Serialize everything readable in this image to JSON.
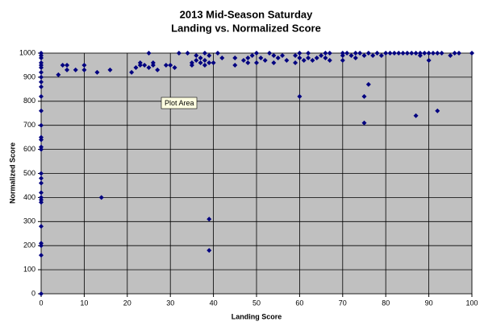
{
  "chart_data": {
    "type": "scatter",
    "title": "2013 Mid-Season Saturday",
    "subtitle": "Landing vs. Normalized Score",
    "x_label": "Landing Score",
    "y_label": "Normalized Score",
    "tooltip": "Plot Area",
    "grid": true,
    "plot_background": "#c0c0c0",
    "series": [
      {
        "name": "Normalized Score",
        "color": "#000080",
        "x": [
          0,
          0,
          0,
          0,
          0,
          0,
          0,
          0,
          0,
          0,
          0,
          0,
          0,
          0,
          0,
          0,
          0,
          0,
          0,
          0,
          0,
          0,
          0,
          0,
          0,
          0,
          0,
          0,
          0,
          4,
          5,
          6,
          6,
          8,
          10,
          10,
          13,
          14,
          16,
          21,
          22,
          23,
          23,
          24,
          25,
          25,
          26,
          26,
          27,
          29,
          30,
          31,
          32,
          34,
          35,
          35,
          36,
          36,
          37,
          37,
          38,
          38,
          38,
          39,
          39,
          39,
          39,
          40,
          41,
          42,
          45,
          45,
          47,
          48,
          48,
          49,
          50,
          50,
          51,
          52,
          53,
          54,
          54,
          55,
          56,
          57,
          59,
          59,
          60,
          60,
          60,
          61,
          62,
          62,
          63,
          64,
          65,
          66,
          66,
          67,
          67,
          70,
          70,
          70,
          71,
          72,
          73,
          73,
          74,
          75,
          75,
          75,
          76,
          76,
          77,
          78,
          79,
          80,
          81,
          82,
          83,
          84,
          85,
          86,
          87,
          87,
          88,
          88,
          89,
          90,
          90,
          91,
          92,
          92,
          93,
          95,
          96,
          97,
          100
        ],
        "values": [
          1000,
          990,
          980,
          960,
          950,
          940,
          920,
          900,
          880,
          860,
          820,
          760,
          700,
          650,
          640,
          610,
          600,
          500,
          480,
          460,
          420,
          400,
          390,
          380,
          280,
          210,
          200,
          160,
          0,
          910,
          950,
          950,
          930,
          930,
          950,
          930,
          920,
          400,
          930,
          920,
          940,
          950,
          960,
          950,
          1000,
          940,
          960,
          950,
          930,
          950,
          950,
          940,
          1000,
          1000,
          960,
          950,
          990,
          970,
          960,
          980,
          950,
          1000,
          970,
          990,
          960,
          310,
          180,
          960,
          1000,
          980,
          980,
          950,
          970,
          960,
          980,
          990,
          1000,
          960,
          980,
          970,
          1000,
          990,
          960,
          980,
          990,
          970,
          960,
          990,
          1000,
          980,
          820,
          970,
          1000,
          980,
          970,
          980,
          990,
          1000,
          980,
          1000,
          970,
          1000,
          990,
          970,
          1000,
          990,
          1000,
          980,
          1000,
          990,
          820,
          710,
          870,
          1000,
          990,
          1000,
          990,
          1000,
          1000,
          1000,
          1000,
          1000,
          1000,
          1000,
          1000,
          740,
          1000,
          990,
          1000,
          1000,
          970,
          1000,
          1000,
          760,
          1000,
          990,
          1000,
          1000,
          1000
        ]
      }
    ],
    "xlim": [
      0,
      100
    ],
    "xticks": [
      0,
      10,
      20,
      30,
      40,
      50,
      60,
      70,
      80,
      90,
      100
    ],
    "ylim": [
      0,
      1000
    ],
    "yticks": [
      0,
      100,
      200,
      300,
      400,
      500,
      600,
      700,
      800,
      900,
      1000
    ]
  }
}
